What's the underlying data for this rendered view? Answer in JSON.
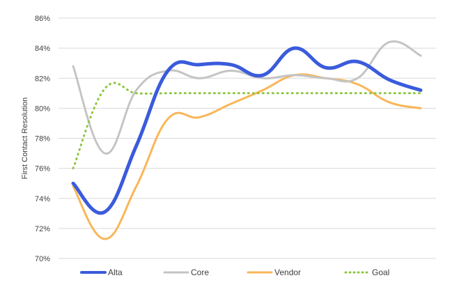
{
  "chart_data": {
    "type": "line",
    "ylabel": "First Contact Resolution",
    "xlabel": "",
    "ylim": [
      70,
      86
    ],
    "yticks": [
      70,
      72,
      74,
      76,
      78,
      80,
      82,
      84,
      86
    ],
    "ytick_labels": [
      "70%",
      "72%",
      "74%",
      "76%",
      "78%",
      "80%",
      "82%",
      "84%",
      "86%"
    ],
    "grid": true,
    "legend_position": "bottom",
    "x": [
      1,
      2,
      3,
      4,
      5,
      6,
      7,
      8,
      9,
      10,
      11,
      12
    ],
    "series": [
      {
        "name": "Alta",
        "color": "#3a5bdc",
        "style": "solid",
        "values": [
          75.0,
          73.1,
          77.5,
          82.5,
          82.9,
          82.9,
          82.2,
          84.0,
          82.7,
          83.1,
          81.9,
          81.2
        ]
      },
      {
        "name": "Core",
        "color": "#c4c4c4",
        "style": "solid",
        "values": [
          82.8,
          77.0,
          81.2,
          82.5,
          82.0,
          82.5,
          82.0,
          82.2,
          82.0,
          82.0,
          84.4,
          83.5
        ]
      },
      {
        "name": "Vendor",
        "color": "#f9b658",
        "style": "solid",
        "values": [
          74.8,
          71.3,
          74.8,
          79.3,
          79.4,
          80.3,
          81.2,
          82.2,
          82.0,
          81.6,
          80.4,
          80.0
        ]
      },
      {
        "name": "Goal",
        "color": "#8cc63f",
        "style": "dotted",
        "values": [
          76.0,
          81.3,
          81.0,
          81.0,
          81.0,
          81.0,
          81.0,
          81.0,
          81.0,
          81.0,
          81.0,
          81.0
        ]
      }
    ]
  }
}
